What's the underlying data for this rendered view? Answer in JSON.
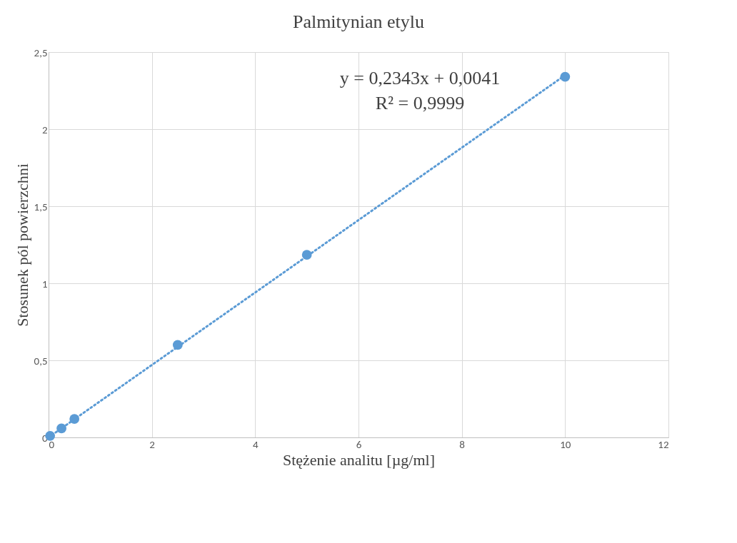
{
  "chart_data": {
    "type": "scatter",
    "title": "Palmitynian etylu",
    "xlabel": "Stężenie analitu [µg/ml]",
    "ylabel": "Stosunek pól powierzchni",
    "series": [
      {
        "color": "#5b9bd5",
        "x": [
          0.03,
          0.25,
          0.5,
          2.5,
          5,
          10
        ],
        "values": [
          0.01,
          0.058,
          0.12,
          0.6,
          1.185,
          2.34
        ],
        "marker": "circle"
      },
      {
        "type": "line",
        "color": "#5b9bd5",
        "x": [
          0,
          10
        ],
        "values": [
          0.0,
          2.35
        ],
        "line_style": "dotted"
      }
    ],
    "annotations": [
      "y = 0,2343x + 0,0041",
      "R² = 0,9999"
    ],
    "xlim": [
      0,
      12
    ],
    "xticks": [
      0,
      2,
      4,
      6,
      8,
      10,
      12
    ],
    "ylim": [
      0,
      2.5
    ],
    "yticks": [
      0,
      {
        "value": 0.5,
        "label": "0,5"
      },
      1,
      {
        "value": 1.5,
        "label": "1,5"
      },
      2,
      {
        "value": 2.5,
        "label": "2,5"
      }
    ],
    "grid": true
  }
}
